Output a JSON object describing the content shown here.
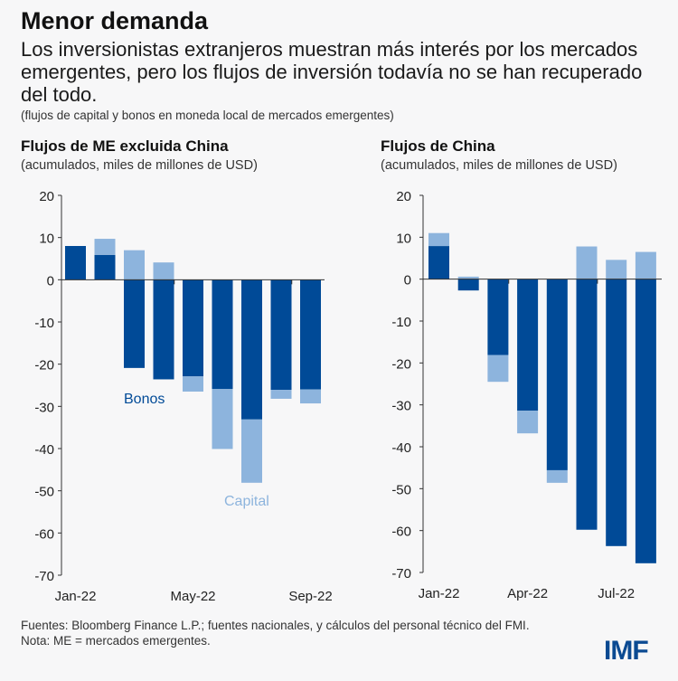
{
  "title": "Menor demanda",
  "subtitle": "Los inversionistas extranjeros muestran más interés por los mercados emergentes, pero los flujos de inversión todavía no se han recuperado del todo.",
  "note": "(flujos de capital y bonos en moneda local de mercados emergentes)",
  "footer": {
    "sources": "Fuentes: Bloomberg Finance L.P.; fuentes nacionales, y cálculos del personal técnico del FMI.",
    "nota": "Nota: ME = mercados emergentes."
  },
  "logo": "IMF",
  "colors": {
    "bonos": "#004a97",
    "capital": "#8db4dd"
  },
  "chart_data": [
    {
      "type": "bar",
      "stacked": true,
      "title": "Flujos de ME excluida China",
      "subtitle": "(acumulados, miles de millones de USD)",
      "categories": [
        "Jan-22",
        "Feb-22",
        "Mar-22",
        "Apr-22",
        "May-22",
        "Jun-22",
        "Jul-22",
        "Aug-22",
        "Sep-22"
      ],
      "xtick_labels": [
        "Jan-22",
        "May-22",
        "Sep-22"
      ],
      "ylim": [
        -70,
        20
      ],
      "yticks": [
        20,
        10,
        0,
        -10,
        -20,
        -30,
        -40,
        -50,
        -60,
        -70
      ],
      "annotations": [
        "Bonos",
        "Capital"
      ],
      "series": [
        {
          "name": "Bonos",
          "values": [
            8,
            5.9,
            -20.9,
            -23.6,
            -22.9,
            -25.9,
            -33.1,
            -26.1,
            -26
          ]
        },
        {
          "name": "Capital",
          "values": [
            0,
            3.8,
            7,
            4.1,
            -3.6,
            -14.2,
            -15,
            -2.1,
            -3.3
          ]
        }
      ]
    },
    {
      "type": "bar",
      "stacked": true,
      "title": "Flujos de China",
      "subtitle": "(acumulados, miles de millones de USD)",
      "categories": [
        "Jan-22",
        "Feb-22",
        "Mar-22",
        "Apr-22",
        "May-22",
        "Jun-22",
        "Jul-22",
        "Aug-22"
      ],
      "xtick_labels": [
        "Jan-22",
        "Apr-22",
        "Jul-22"
      ],
      "ylim": [
        -70,
        20
      ],
      "yticks": [
        20,
        10,
        0,
        -10,
        -20,
        -30,
        -40,
        -50,
        -60,
        -70
      ],
      "series": [
        {
          "name": "Bonos",
          "values": [
            7.9,
            -2.7,
            -18.1,
            -31.4,
            -45.6,
            -59.8,
            -63.7,
            -67.8
          ]
        },
        {
          "name": "Capital",
          "values": [
            3.1,
            0.6,
            -6.4,
            -5.4,
            -3,
            7.8,
            4.6,
            6.5
          ]
        }
      ]
    }
  ]
}
